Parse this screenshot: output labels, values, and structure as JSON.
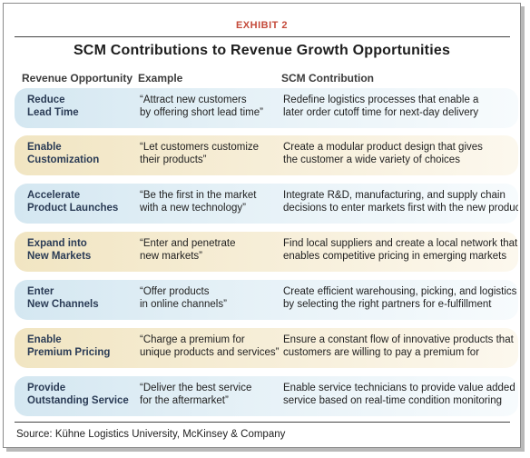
{
  "exhibit_label": "EXHIBIT 2",
  "title": "SCM Contributions to Revenue Growth Opportunities",
  "headers": {
    "revenue_opportunity": "Revenue Opportunity",
    "example": "Example",
    "scm_contribution": "SCM Contribution"
  },
  "colors": {
    "accent_red": "#c44a3a",
    "row_blue": "#d4e7f1",
    "row_tan": "#f1e5c2",
    "label_navy": "#2a3b55"
  },
  "rows": [
    {
      "opportunity": [
        "Reduce",
        "Lead Time"
      ],
      "example": [
        "“Attract new customers",
        "by offering short lead time”"
      ],
      "contribution": [
        "Redefine logistics processes that enable a",
        "later order cutoff time for next-day delivery"
      ]
    },
    {
      "opportunity": [
        "Enable",
        "Customization"
      ],
      "example": [
        "“Let customers customize",
        "their products”"
      ],
      "contribution": [
        "Create a modular product design that gives",
        "the customer a wide variety of choices"
      ]
    },
    {
      "opportunity": [
        "Accelerate",
        "Product Launches"
      ],
      "example": [
        "“Be the first in the market",
        "with a new technology”"
      ],
      "contribution": [
        "Integrate R&D, manufacturing, and supply chain",
        "decisions to enter markets first with the new product"
      ]
    },
    {
      "opportunity": [
        "Expand into",
        "New Markets"
      ],
      "example": [
        "“Enter and penetrate",
        "new markets”"
      ],
      "contribution": [
        "Find local suppliers and create a local network that",
        "enables competitive pricing in emerging markets"
      ]
    },
    {
      "opportunity": [
        "Enter",
        "New Channels"
      ],
      "example": [
        "“Offer products",
        "in online channels”"
      ],
      "contribution": [
        "Create efficient warehousing, picking, and logistics",
        "by selecting the right partners for e-fulfillment"
      ]
    },
    {
      "opportunity": [
        "Enable",
        "Premium Pricing"
      ],
      "example": [
        "“Charge a premium for",
        "unique products and services”"
      ],
      "contribution": [
        "Ensure a constant flow of innovative products that",
        "customers are willing to pay a premium for"
      ]
    },
    {
      "opportunity": [
        "Provide",
        "Outstanding Service"
      ],
      "example": [
        "“Deliver the best service",
        "for the aftermarket”"
      ],
      "contribution": [
        "Enable service technicians to provide value added",
        "service based on real-time condition monitoring"
      ]
    }
  ],
  "source": "Source: Kühne Logistics University, McKinsey & Company"
}
